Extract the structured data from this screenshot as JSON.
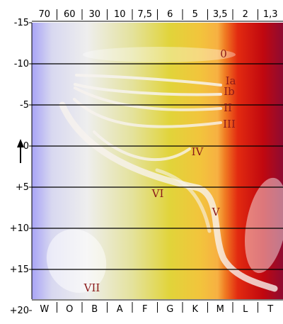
{
  "top_axis": {
    "labels": [
      "70",
      "60",
      "30",
      "10",
      "7,5",
      "6",
      "5",
      "3,5",
      "2",
      "1,3"
    ]
  },
  "bottom_axis": {
    "labels": [
      "W",
      "O",
      "B",
      "A",
      "F",
      "G",
      "K",
      "M",
      "L",
      "T"
    ]
  },
  "left_axis": {
    "labels": [
      "-15",
      "-10",
      "-5",
      "0",
      "+5",
      "+10",
      "+15",
      "+20"
    ],
    "arrow_icon": "up-arrow-icon"
  },
  "luminosity_classes": [
    {
      "label": "0"
    },
    {
      "label": "Ia"
    },
    {
      "label": "Ib"
    },
    {
      "label": "II"
    },
    {
      "label": "III"
    },
    {
      "label": "IV"
    },
    {
      "label": "V"
    },
    {
      "label": "VI"
    },
    {
      "label": "VII"
    }
  ],
  "colors": {
    "gradient": [
      "#a8a4f6",
      "#eeeeee",
      "#e4e29c",
      "#e1d43a",
      "#f7b042",
      "#f07a22",
      "#d3150c",
      "#8e0b32"
    ],
    "class_label": "#8b1a1a",
    "band": "#f7f3ee"
  }
}
